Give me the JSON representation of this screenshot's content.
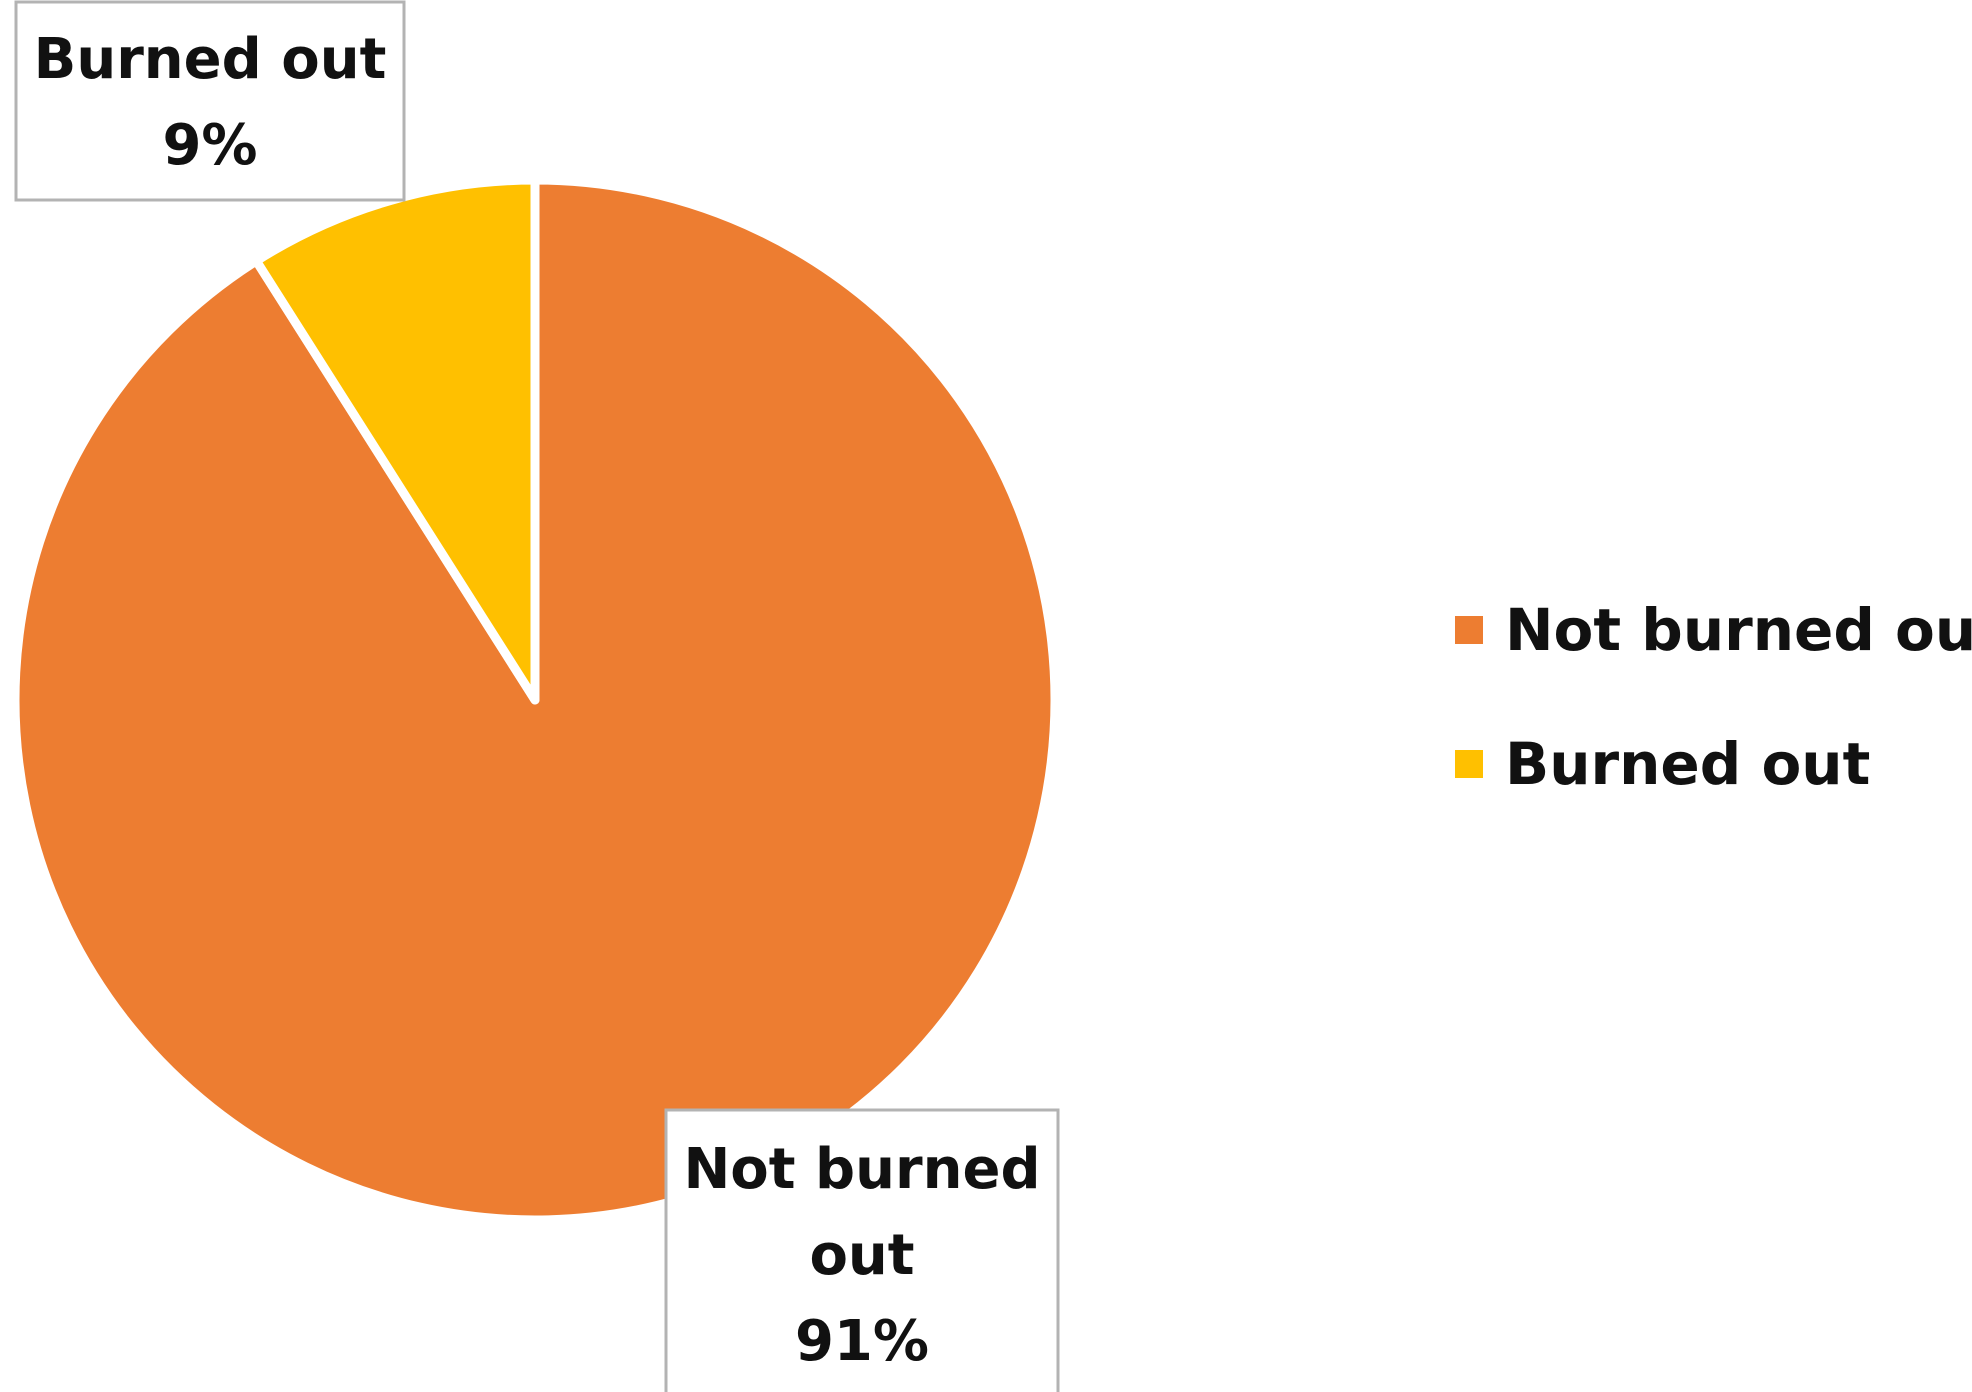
{
  "chart_data": {
    "type": "pie",
    "title": "",
    "categories": [
      "Not burned out",
      "Burned out"
    ],
    "values": [
      91,
      9
    ],
    "unit": "%",
    "colors": [
      "#ED7D31",
      "#FFC000"
    ],
    "start_angle_deg": 0,
    "direction": "clockwise",
    "slice_border_color": "#ffffff",
    "legend": {
      "position": "right",
      "items": [
        {
          "label": "Not burned out",
          "color": "#ED7D31"
        },
        {
          "label": "Burned out",
          "color": "#FFC000"
        }
      ]
    },
    "data_labels": [
      {
        "category": "Not burned out",
        "lines": [
          "Not burned",
          "out",
          "91%"
        ]
      },
      {
        "category": "Burned out",
        "lines": [
          "Burned out",
          "9%"
        ]
      }
    ]
  }
}
